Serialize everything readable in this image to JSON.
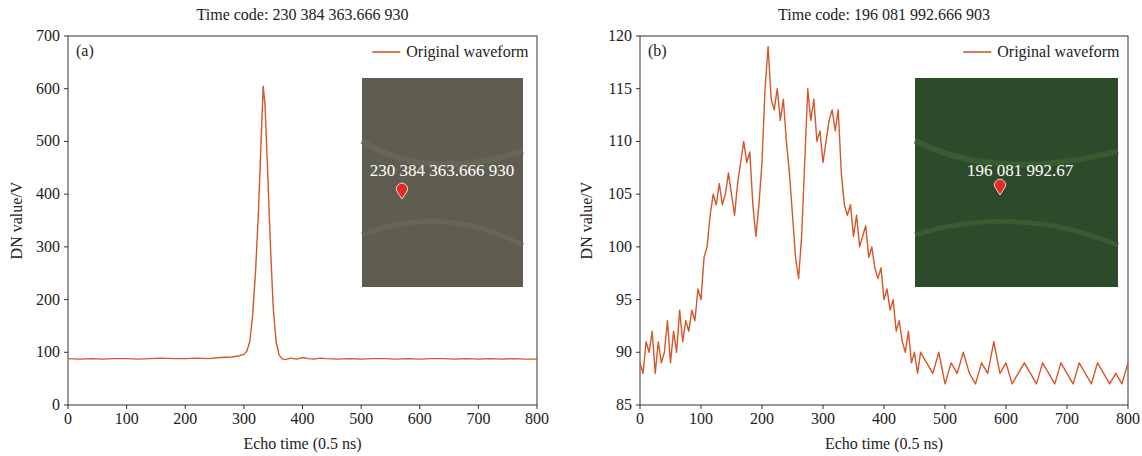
{
  "chart_data": [
    {
      "type": "line",
      "title": "Time code: 230 384 363.666 930",
      "panel_label": "(a)",
      "inset_label": "230 384 363.666 930",
      "x_label": "Echo time (0.5 ns)",
      "y_label": "DN value/V",
      "xlim": [
        0,
        800
      ],
      "xticks": [
        0,
        100,
        200,
        300,
        400,
        500,
        600,
        700,
        800
      ],
      "ylim": [
        0,
        700
      ],
      "yticks": [
        0,
        100,
        200,
        300,
        400,
        500,
        600,
        700
      ],
      "grid": false,
      "legend": "upper right",
      "x": [
        0,
        20,
        40,
        60,
        80,
        100,
        120,
        140,
        160,
        180,
        200,
        220,
        240,
        260,
        280,
        290,
        300,
        305,
        310,
        315,
        320,
        325,
        330,
        333,
        336,
        340,
        345,
        350,
        355,
        360,
        365,
        370,
        380,
        390,
        400,
        410,
        420,
        430,
        440,
        460,
        480,
        500,
        520,
        540,
        560,
        580,
        600,
        620,
        640,
        660,
        680,
        700,
        720,
        740,
        760,
        780,
        800
      ],
      "series": [
        {
          "name": "Original waveform",
          "color": "#d4572a",
          "values": [
            88,
            87,
            88,
            87,
            88,
            88,
            87,
            88,
            89,
            88,
            88,
            89,
            88,
            90,
            91,
            93,
            96,
            102,
            120,
            170,
            255,
            370,
            520,
            605,
            570,
            460,
            310,
            185,
            120,
            95,
            88,
            86,
            89,
            87,
            90,
            88,
            87,
            89,
            88,
            87,
            88,
            87,
            88,
            88,
            87,
            88,
            87,
            88,
            88,
            87,
            88,
            87,
            88,
            87,
            88,
            87,
            87
          ]
        }
      ]
    },
    {
      "type": "line",
      "title": "Time code: 196 081 992.666 903",
      "panel_label": "(b)",
      "inset_label": "196 081 992.67",
      "x_label": "Echo time (0.5 ns)",
      "y_label": "DN value/V",
      "xlim": [
        0,
        800
      ],
      "xticks": [
        0,
        100,
        200,
        300,
        400,
        500,
        600,
        700,
        800
      ],
      "ylim": [
        85,
        120
      ],
      "yticks": [
        85,
        90,
        95,
        100,
        105,
        110,
        115,
        120
      ],
      "grid": false,
      "legend": "upper right",
      "x": [
        0,
        5,
        10,
        15,
        20,
        25,
        30,
        35,
        40,
        45,
        50,
        55,
        60,
        65,
        70,
        75,
        80,
        85,
        90,
        95,
        100,
        105,
        110,
        115,
        120,
        125,
        130,
        135,
        140,
        145,
        150,
        155,
        160,
        165,
        170,
        175,
        180,
        185,
        190,
        195,
        200,
        205,
        210,
        215,
        220,
        225,
        230,
        235,
        240,
        245,
        250,
        255,
        260,
        265,
        270,
        275,
        280,
        285,
        290,
        295,
        300,
        305,
        310,
        315,
        320,
        325,
        330,
        335,
        340,
        345,
        350,
        355,
        360,
        365,
        370,
        375,
        380,
        385,
        390,
        395,
        400,
        405,
        410,
        415,
        420,
        425,
        430,
        435,
        440,
        445,
        450,
        455,
        460,
        470,
        480,
        490,
        500,
        510,
        520,
        530,
        540,
        550,
        560,
        570,
        580,
        590,
        600,
        610,
        620,
        630,
        640,
        650,
        660,
        670,
        680,
        690,
        700,
        710,
        720,
        730,
        740,
        750,
        760,
        770,
        780,
        790,
        800
      ],
      "series": [
        {
          "name": "Original waveform",
          "color": "#d4572a",
          "values": [
            89,
            88,
            91,
            90,
            92,
            88,
            91,
            89,
            90,
            93,
            89,
            92,
            90,
            94,
            91,
            93,
            92,
            94,
            93,
            96,
            95,
            99,
            100,
            103,
            105,
            104,
            106,
            104,
            105,
            107,
            105,
            103,
            106,
            108,
            110,
            108,
            109,
            104,
            101,
            104,
            108,
            115,
            119,
            114,
            113,
            115,
            112,
            114,
            110,
            107,
            103,
            99,
            97,
            101,
            108,
            115,
            112,
            114,
            110,
            111,
            108,
            110,
            112,
            113,
            111,
            113,
            107,
            104,
            103,
            104,
            101,
            103,
            100,
            101,
            102,
            99,
            100,
            98,
            97,
            98,
            95,
            96,
            94,
            95,
            92,
            93,
            91,
            90,
            92,
            89,
            90,
            88,
            90,
            89,
            88,
            90,
            87,
            89,
            88,
            90,
            88,
            87,
            89,
            88,
            91,
            88,
            89,
            87,
            88,
            89,
            88,
            87,
            89,
            88,
            87,
            89,
            88,
            87,
            89,
            88,
            87,
            89,
            88,
            87,
            88,
            87,
            89
          ]
        }
      ]
    }
  ]
}
